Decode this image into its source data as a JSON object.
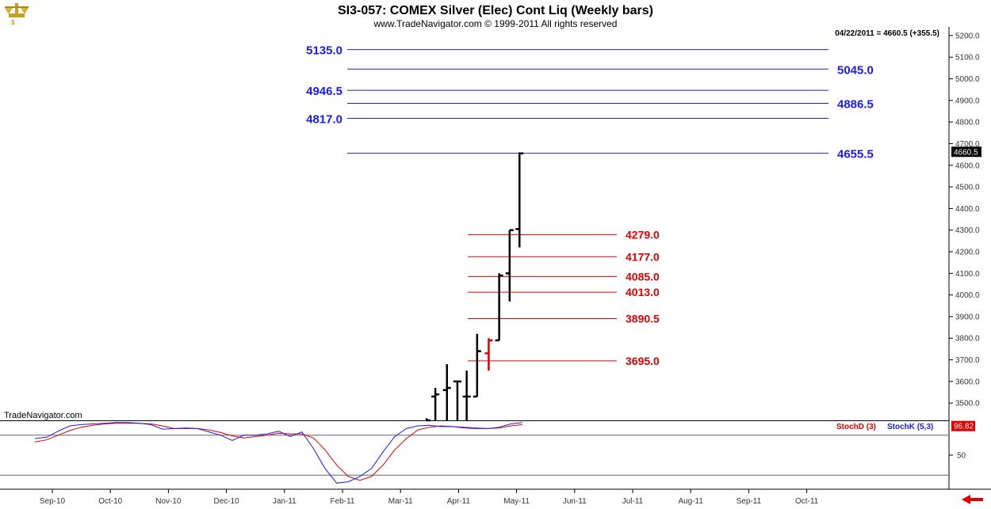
{
  "header": {
    "title": "SI3-057:  COMEX Silver (Elec) Cont Liq  (Weekly bars)",
    "copyright": "www.TradeNavigator.com © 1999-2011 All rights reserved",
    "readout": "04/22/2011 = 4660.5 (+355.5)",
    "brand": "TradeNavigator.com"
  },
  "colors": {
    "accent_blue": "#1a1aff",
    "accent_red": "#e00000",
    "grid": "#2020c0",
    "bar": "#000000",
    "logo": "#c8a020"
  },
  "icons": {
    "logo": "gold-scale-logo-icon",
    "nav": "red-left-arrow-icon"
  },
  "chart_data": {
    "type": "ohlc",
    "price_axis": {
      "ylim": [
        3420,
        5240
      ],
      "ticks": [
        3500,
        3600,
        3700,
        3800,
        3900,
        4000,
        4100,
        4200,
        4300,
        4400,
        4500,
        4600,
        4700,
        4800,
        4900,
        5000,
        5100,
        5200
      ],
      "tick_labels": [
        "3500.0",
        "3600.0",
        "3700.0",
        "3800.0",
        "3900.0",
        "4000.0",
        "4100.0",
        "4200.0",
        "4300.0",
        "4400.0",
        "4500.0",
        "4600.0",
        "4700.0",
        "4800.0",
        "4900.0",
        "5000.0",
        "5100.0",
        "5200.0"
      ],
      "last_value_label": "4660.5",
      "last_value": 4660.5
    },
    "x_axis": {
      "labels": [
        "Sep-10",
        "Oct-10",
        "Nov-10",
        "Dec-10",
        "Jan-11",
        "Feb-11",
        "Mar-11",
        "Apr-11",
        "May-11",
        "Jun-11",
        "Jul-11",
        "Aug-11",
        "Sep-11",
        "Oct-11"
      ],
      "month_index_range": [
        0,
        14
      ]
    },
    "bars": [
      {
        "t": 6.45,
        "o": 3400,
        "h": 3430,
        "l": 3400,
        "c": 3420,
        "color": "#000000"
      },
      {
        "t": 6.6,
        "o": 3530,
        "h": 3570,
        "l": 3400,
        "c": 3540,
        "color": "#000000"
      },
      {
        "t": 6.8,
        "o": 3560,
        "h": 3680,
        "l": 3400,
        "c": 3570,
        "color": "#000000"
      },
      {
        "t": 6.98,
        "o": 3600,
        "h": 3600,
        "l": 3400,
        "c": 3600,
        "color": "#000000"
      },
      {
        "t": 7.14,
        "o": 3530,
        "h": 3650,
        "l": 3400,
        "c": 3530,
        "color": "#000000"
      },
      {
        "t": 7.32,
        "o": 3530,
        "h": 3820,
        "l": 3530,
        "c": 3740,
        "color": "#000000"
      },
      {
        "t": 7.52,
        "o": 3730,
        "h": 3800,
        "l": 3650,
        "c": 3790,
        "color": "#e00000"
      },
      {
        "t": 7.7,
        "o": 3790,
        "h": 4100,
        "l": 3790,
        "c": 4090,
        "color": "#000000"
      },
      {
        "t": 7.88,
        "o": 4100,
        "h": 4300,
        "l": 3970,
        "c": 4300,
        "color": "#000000"
      },
      {
        "t": 8.05,
        "o": 4305,
        "h": 4660,
        "l": 4220,
        "c": 4655,
        "color": "#000000"
      }
    ],
    "levels_blue": [
      {
        "value": 5135.0,
        "label": "5135.0",
        "label_side": "left"
      },
      {
        "value": 5045.0,
        "label": "5045.0",
        "label_side": "right"
      },
      {
        "value": 4946.5,
        "label": "4946.5",
        "label_side": "left"
      },
      {
        "value": 4886.5,
        "label": "4886.5",
        "label_side": "right"
      },
      {
        "value": 4817.0,
        "label": "4817.0",
        "label_side": "left"
      },
      {
        "value": 4655.5,
        "label": "4655.5",
        "label_side": "right"
      }
    ],
    "levels_red": [
      {
        "value": 4279.0,
        "label": "4279.0"
      },
      {
        "value": 4177.0,
        "label": "4177.0"
      },
      {
        "value": 4085.0,
        "label": "4085.0"
      },
      {
        "value": 4013.0,
        "label": "4013.0"
      },
      {
        "value": 3890.5,
        "label": "3890.5"
      },
      {
        "value": 3695.0,
        "label": "3695.0"
      }
    ],
    "stochastic": {
      "ylim": [
        0,
        100
      ],
      "ticks": [
        50
      ],
      "tick_labels": [
        "50"
      ],
      "ref_lines": [
        80,
        20
      ],
      "last_value_label": "96.82",
      "last_value": 96.82,
      "legend": [
        {
          "name": "StochD (3)",
          "color": "#e00000"
        },
        {
          "name": "StochK (5,3)",
          "color": "#1a1aff"
        }
      ],
      "t": [
        -0.3,
        -0.1,
        0.1,
        0.3,
        0.5,
        0.7,
        0.9,
        1.1,
        1.3,
        1.5,
        1.7,
        1.9,
        2.1,
        2.3,
        2.5,
        2.7,
        2.9,
        3.1,
        3.3,
        3.5,
        3.7,
        3.9,
        4.1,
        4.3,
        4.5,
        4.7,
        4.9,
        5.1,
        5.3,
        5.5,
        5.7,
        5.9,
        6.1,
        6.3,
        6.5,
        6.7,
        6.9,
        7.1,
        7.3,
        7.5,
        7.7,
        7.9,
        8.1
      ],
      "stoch_k": [
        75,
        77,
        86,
        94,
        96,
        97,
        98,
        99,
        99,
        98,
        96,
        89,
        90,
        91,
        90,
        85,
        80,
        72,
        80,
        80,
        82,
        86,
        78,
        85,
        60,
        30,
        8,
        10,
        18,
        30,
        55,
        78,
        90,
        94,
        95,
        93,
        93,
        91,
        90,
        90,
        92,
        97,
        99
      ],
      "stoch_d": [
        70,
        73,
        80,
        87,
        92,
        95,
        97,
        98,
        98,
        98,
        97,
        94,
        90,
        90,
        90,
        88,
        84,
        79,
        76,
        78,
        80,
        83,
        82,
        82,
        76,
        58,
        35,
        18,
        12,
        18,
        35,
        58,
        75,
        88,
        92,
        94,
        93,
        92,
        91,
        90,
        91,
        94,
        96
      ]
    }
  }
}
